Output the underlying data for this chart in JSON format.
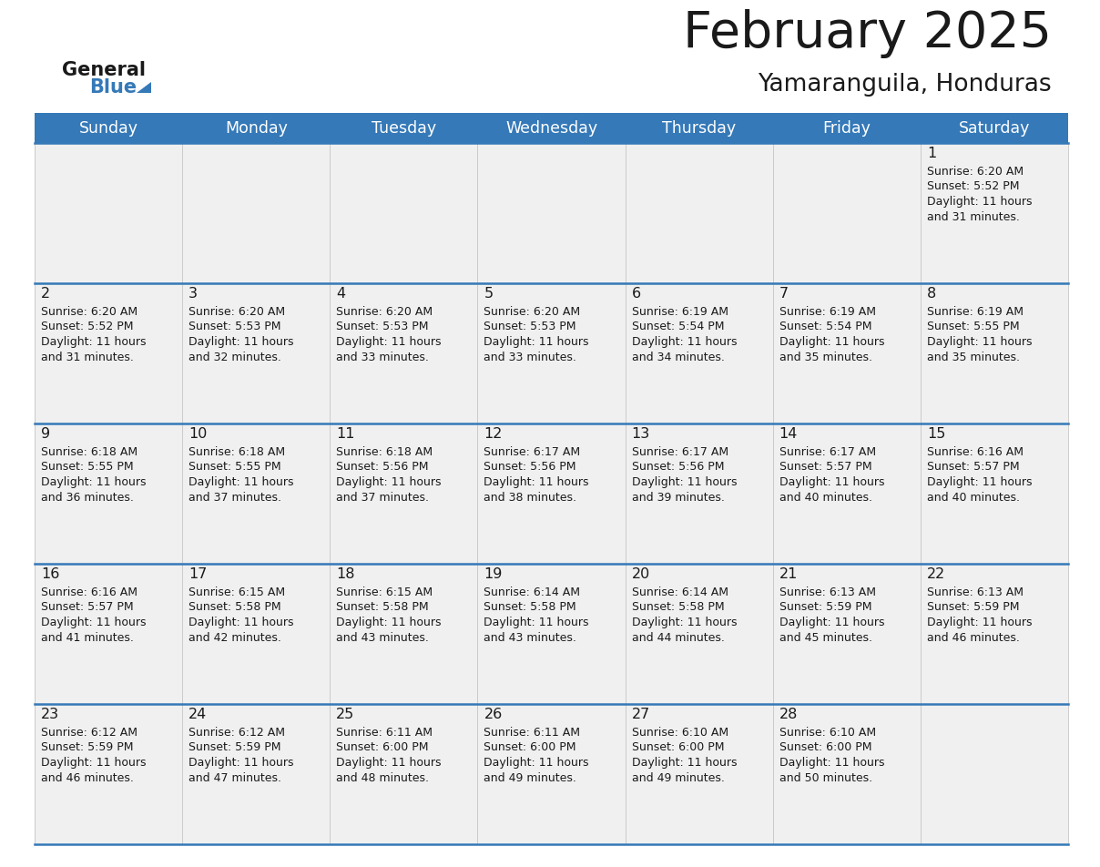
{
  "title": "February 2025",
  "subtitle": "Yamaranguila, Honduras",
  "header_color": "#3579b8",
  "header_text_color": "#ffffff",
  "row_separator_color": "#3579b8",
  "cell_bg": "#f0f0f0",
  "cell_bg_white": "#ffffff",
  "text_color": "#1a1a1a",
  "days_of_week": [
    "Sunday",
    "Monday",
    "Tuesday",
    "Wednesday",
    "Thursday",
    "Friday",
    "Saturday"
  ],
  "calendar": [
    [
      null,
      null,
      null,
      null,
      null,
      null,
      {
        "day": 1,
        "sunrise": "6:20 AM",
        "sunset": "5:52 PM",
        "daylight_h": "11 hours",
        "daylight_m": "31 minutes"
      }
    ],
    [
      {
        "day": 2,
        "sunrise": "6:20 AM",
        "sunset": "5:52 PM",
        "daylight_h": "11 hours",
        "daylight_m": "31 minutes"
      },
      {
        "day": 3,
        "sunrise": "6:20 AM",
        "sunset": "5:53 PM",
        "daylight_h": "11 hours",
        "daylight_m": "32 minutes"
      },
      {
        "day": 4,
        "sunrise": "6:20 AM",
        "sunset": "5:53 PM",
        "daylight_h": "11 hours",
        "daylight_m": "33 minutes"
      },
      {
        "day": 5,
        "sunrise": "6:20 AM",
        "sunset": "5:53 PM",
        "daylight_h": "11 hours",
        "daylight_m": "33 minutes"
      },
      {
        "day": 6,
        "sunrise": "6:19 AM",
        "sunset": "5:54 PM",
        "daylight_h": "11 hours",
        "daylight_m": "34 minutes"
      },
      {
        "day": 7,
        "sunrise": "6:19 AM",
        "sunset": "5:54 PM",
        "daylight_h": "11 hours",
        "daylight_m": "35 minutes"
      },
      {
        "day": 8,
        "sunrise": "6:19 AM",
        "sunset": "5:55 PM",
        "daylight_h": "11 hours",
        "daylight_m": "35 minutes"
      }
    ],
    [
      {
        "day": 9,
        "sunrise": "6:18 AM",
        "sunset": "5:55 PM",
        "daylight_h": "11 hours",
        "daylight_m": "36 minutes"
      },
      {
        "day": 10,
        "sunrise": "6:18 AM",
        "sunset": "5:55 PM",
        "daylight_h": "11 hours",
        "daylight_m": "37 minutes"
      },
      {
        "day": 11,
        "sunrise": "6:18 AM",
        "sunset": "5:56 PM",
        "daylight_h": "11 hours",
        "daylight_m": "37 minutes"
      },
      {
        "day": 12,
        "sunrise": "6:17 AM",
        "sunset": "5:56 PM",
        "daylight_h": "11 hours",
        "daylight_m": "38 minutes"
      },
      {
        "day": 13,
        "sunrise": "6:17 AM",
        "sunset": "5:56 PM",
        "daylight_h": "11 hours",
        "daylight_m": "39 minutes"
      },
      {
        "day": 14,
        "sunrise": "6:17 AM",
        "sunset": "5:57 PM",
        "daylight_h": "11 hours",
        "daylight_m": "40 minutes"
      },
      {
        "day": 15,
        "sunrise": "6:16 AM",
        "sunset": "5:57 PM",
        "daylight_h": "11 hours",
        "daylight_m": "40 minutes"
      }
    ],
    [
      {
        "day": 16,
        "sunrise": "6:16 AM",
        "sunset": "5:57 PM",
        "daylight_h": "11 hours",
        "daylight_m": "41 minutes"
      },
      {
        "day": 17,
        "sunrise": "6:15 AM",
        "sunset": "5:58 PM",
        "daylight_h": "11 hours",
        "daylight_m": "42 minutes"
      },
      {
        "day": 18,
        "sunrise": "6:15 AM",
        "sunset": "5:58 PM",
        "daylight_h": "11 hours",
        "daylight_m": "43 minutes"
      },
      {
        "day": 19,
        "sunrise": "6:14 AM",
        "sunset": "5:58 PM",
        "daylight_h": "11 hours",
        "daylight_m": "43 minutes"
      },
      {
        "day": 20,
        "sunrise": "6:14 AM",
        "sunset": "5:58 PM",
        "daylight_h": "11 hours",
        "daylight_m": "44 minutes"
      },
      {
        "day": 21,
        "sunrise": "6:13 AM",
        "sunset": "5:59 PM",
        "daylight_h": "11 hours",
        "daylight_m": "45 minutes"
      },
      {
        "day": 22,
        "sunrise": "6:13 AM",
        "sunset": "5:59 PM",
        "daylight_h": "11 hours",
        "daylight_m": "46 minutes"
      }
    ],
    [
      {
        "day": 23,
        "sunrise": "6:12 AM",
        "sunset": "5:59 PM",
        "daylight_h": "11 hours",
        "daylight_m": "46 minutes"
      },
      {
        "day": 24,
        "sunrise": "6:12 AM",
        "sunset": "5:59 PM",
        "daylight_h": "11 hours",
        "daylight_m": "47 minutes"
      },
      {
        "day": 25,
        "sunrise": "6:11 AM",
        "sunset": "6:00 PM",
        "daylight_h": "11 hours",
        "daylight_m": "48 minutes"
      },
      {
        "day": 26,
        "sunrise": "6:11 AM",
        "sunset": "6:00 PM",
        "daylight_h": "11 hours",
        "daylight_m": "49 minutes"
      },
      {
        "day": 27,
        "sunrise": "6:10 AM",
        "sunset": "6:00 PM",
        "daylight_h": "11 hours",
        "daylight_m": "49 minutes"
      },
      {
        "day": 28,
        "sunrise": "6:10 AM",
        "sunset": "6:00 PM",
        "daylight_h": "11 hours",
        "daylight_m": "50 minutes"
      },
      null
    ]
  ],
  "logo_general_color": "#1a1a1a",
  "logo_blue_color": "#3579b8",
  "logo_triangle_color": "#3579b8"
}
